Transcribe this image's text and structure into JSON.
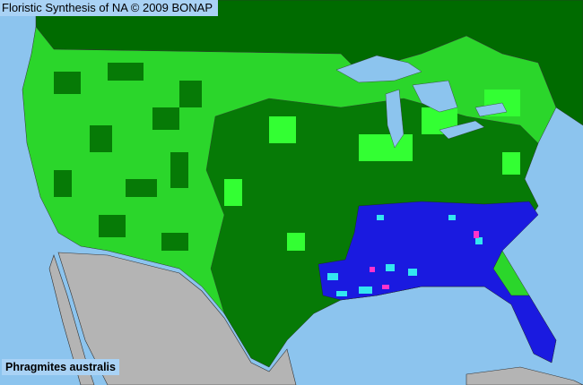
{
  "header": {
    "title": "Floristic Synthesis of NA © 2009 BONAP"
  },
  "map": {
    "species_label": "Phragmites australis",
    "colors": {
      "ocean": "#8cc4ee",
      "canada_and_present": "#006b00",
      "present_native": "#33ff33",
      "present_county_dark": "#007a00",
      "noxious_or_introduced": "#1a1ae0",
      "cyan_counties": "#33e6f0",
      "magenta_counties": "#ff33cc",
      "mexico_not_covered": "#b4b4b4",
      "lakes": "#8cc4ee"
    }
  }
}
